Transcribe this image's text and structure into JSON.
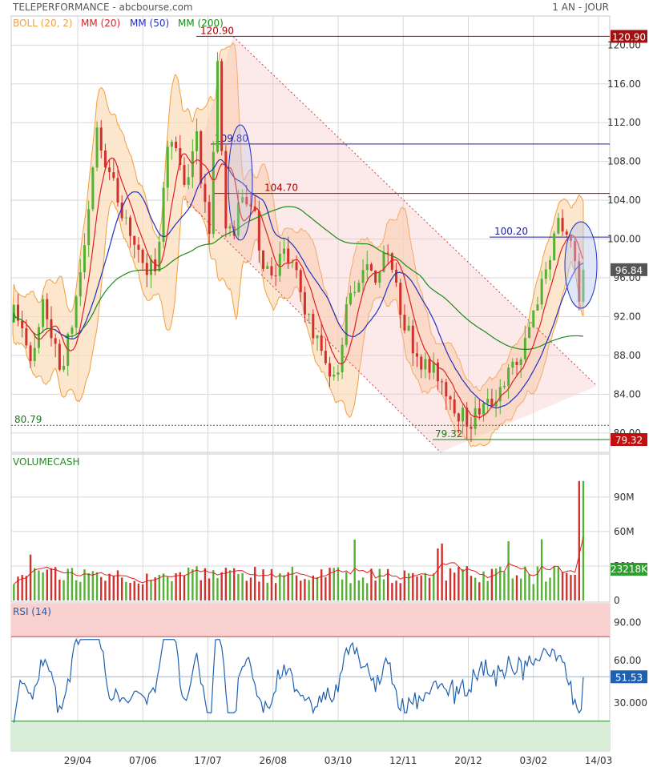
{
  "header": {
    "title": "TELEPERFORMANCE - abcbourse.com",
    "period": "1 AN - JOUR"
  },
  "colors": {
    "up": "#55b033",
    "down": "#d0312d",
    "boll": "#f0a040",
    "mm20": "#e02020",
    "mm50": "#2030c0",
    "mm200": "#1a8a1a",
    "rsi": "#2060b0",
    "grid": "#d8d8d8"
  },
  "chart_data": [
    {
      "type": "candlestick",
      "legend": [
        {
          "name": "BOLL (20, 2)",
          "color": "#f0a040"
        },
        {
          "name": "MM (20)",
          "color": "#e02020"
        },
        {
          "name": "MM (50)",
          "color": "#2030c0"
        },
        {
          "name": "MM (200)",
          "color": "#1a8a1a"
        }
      ],
      "ylim": [
        78,
        123
      ],
      "y_ticks": [
        80,
        84,
        88,
        92,
        96,
        100,
        104,
        108,
        112,
        116,
        120
      ],
      "y_tick_labels": [
        "80.00",
        "84.00",
        "88.00",
        "92.00",
        "96.00",
        "100.00",
        "104.00",
        "108.00",
        "112.00",
        "116.00",
        "120.00"
      ],
      "x_ticks": [
        "29/04",
        "07/06",
        "17/07",
        "26/08",
        "03/10",
        "12/11",
        "20/12",
        "03/02",
        "14/03"
      ],
      "close_anchors": [
        [
          0,
          92.5
        ],
        [
          10,
          90.5
        ],
        [
          20,
          87.5
        ],
        [
          30,
          93.5
        ],
        [
          45,
          86.5
        ],
        [
          55,
          90
        ],
        [
          70,
          100
        ],
        [
          80,
          111
        ],
        [
          92,
          107
        ],
        [
          100,
          104.5
        ],
        [
          110,
          102
        ],
        [
          125,
          96.5
        ],
        [
          140,
          98
        ],
        [
          150,
          111
        ],
        [
          160,
          108.5
        ],
        [
          168,
          104.5
        ],
        [
          175,
          112
        ],
        [
          182,
          105.5
        ],
        [
          190,
          101
        ],
        [
          197,
          118.5
        ],
        [
          203,
          103
        ],
        [
          210,
          100
        ],
        [
          220,
          104
        ],
        [
          230,
          103.5
        ],
        [
          240,
          98
        ],
        [
          250,
          96.5
        ],
        [
          260,
          98.5
        ],
        [
          270,
          97
        ],
        [
          280,
          93.5
        ],
        [
          290,
          90
        ],
        [
          300,
          88
        ],
        [
          310,
          85
        ],
        [
          320,
          92
        ],
        [
          330,
          96
        ],
        [
          340,
          97
        ],
        [
          350,
          96
        ],
        [
          360,
          100
        ],
        [
          370,
          94
        ],
        [
          380,
          90.5
        ],
        [
          390,
          88
        ],
        [
          400,
          86.5
        ],
        [
          410,
          86
        ],
        [
          420,
          84
        ],
        [
          430,
          82
        ],
        [
          440,
          81
        ],
        [
          450,
          82.5
        ],
        [
          460,
          83
        ],
        [
          470,
          85
        ],
        [
          480,
          86.5
        ],
        [
          490,
          88
        ],
        [
          500,
          92
        ],
        [
          510,
          96
        ],
        [
          520,
          100
        ],
        [
          527,
          102
        ],
        [
          534,
          100
        ],
        [
          540,
          98
        ],
        [
          545,
          94
        ],
        [
          550,
          96.84
        ]
      ],
      "volume_series": {
        "name": "VOLUMECASH",
        "y_ticks": [
          "0",
          "30M",
          "60M",
          "90M"
        ],
        "last_value_label": "23218K"
      },
      "rsi_series": {
        "name": "RSI (14)",
        "y_ticks": [
          "30.000",
          "60.00",
          "90.00"
        ],
        "overbought": 80,
        "oversold": 20,
        "last_value_label": "51.53"
      },
      "annotations": {
        "max_label": "120.90",
        "min_label": "79.32",
        "support_label": "80.79",
        "level_109": "109.80",
        "level_104": "104.70",
        "level_100": "100.20",
        "last_price": "96.84",
        "max_value": 120.9,
        "min_value": 79.32,
        "support_value": 80.79,
        "level_109_value": 109.8,
        "level_104_value": 104.7,
        "level_100_value": 100.2,
        "last_price_value": 96.84
      }
    }
  ]
}
